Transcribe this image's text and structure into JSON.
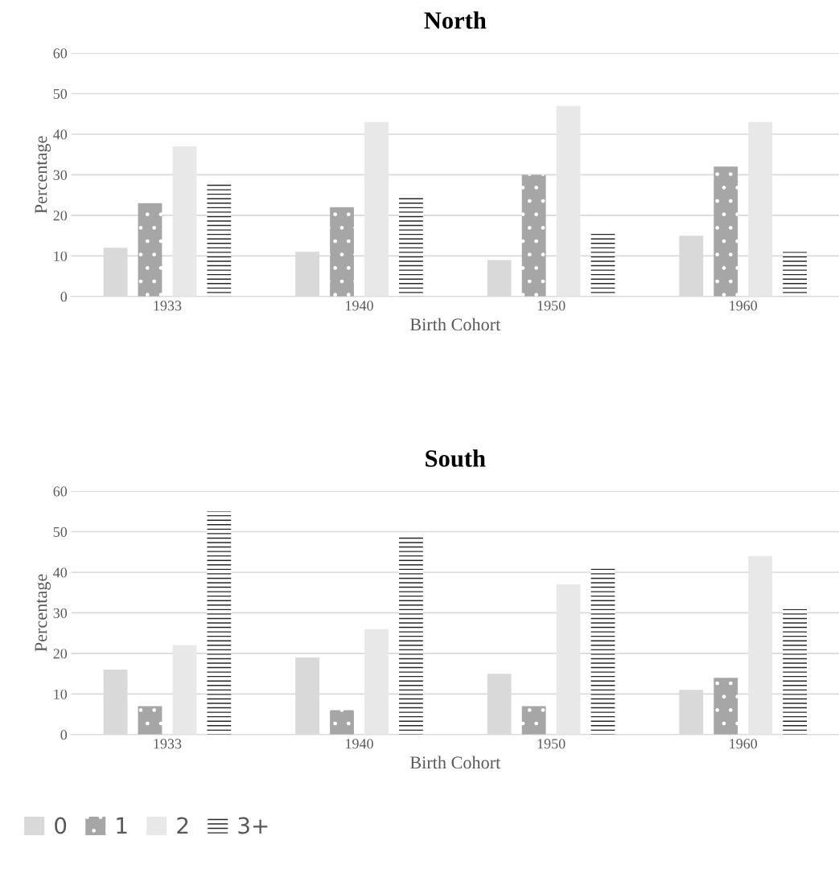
{
  "chart_data": [
    {
      "type": "bar",
      "title": "North",
      "xlabel": "Birth Cohort",
      "ylabel": "Percentage",
      "categories": [
        "1933",
        "1940",
        "1950",
        "1960"
      ],
      "series": [
        {
          "name": "0",
          "color": "#d9d9d9",
          "values": [
            12,
            11,
            9,
            15
          ]
        },
        {
          "name": "1",
          "color": "#a6a6a6",
          "values": [
            23,
            22,
            30,
            32
          ]
        },
        {
          "name": "2",
          "color": "#e8e8e8",
          "values": [
            37,
            43,
            47,
            43
          ]
        },
        {
          "name": "3+",
          "color": "#262626",
          "values": [
            28,
            25,
            16,
            11
          ]
        }
      ],
      "ylim": [
        0,
        60
      ],
      "yticks": [
        0,
        10,
        20,
        30,
        40,
        50,
        60
      ],
      "grid": "y",
      "legend": "bottom left"
    },
    {
      "type": "bar",
      "title": "South",
      "xlabel": "Birth Cohort",
      "ylabel": "Percentage",
      "categories": [
        "1933",
        "1940",
        "1950",
        "1960"
      ],
      "series": [
        {
          "color": "#d9d9d9",
          "values": [
            16,
            19,
            15,
            11
          ]
        },
        {
          "color": "#a6a6a6",
          "values": [
            7,
            6,
            7,
            14
          ]
        },
        {
          "color": "#e8e8e8",
          "values": [
            22,
            26,
            37,
            44
          ]
        },
        {
          "color": "#262626",
          "values": [
            55,
            49,
            41,
            31
          ]
        }
      ],
      "ylim": [
        0,
        60
      ],
      "yticks": [
        0,
        10,
        20,
        30,
        40,
        50,
        60
      ],
      "grid": "y"
    }
  ]
}
